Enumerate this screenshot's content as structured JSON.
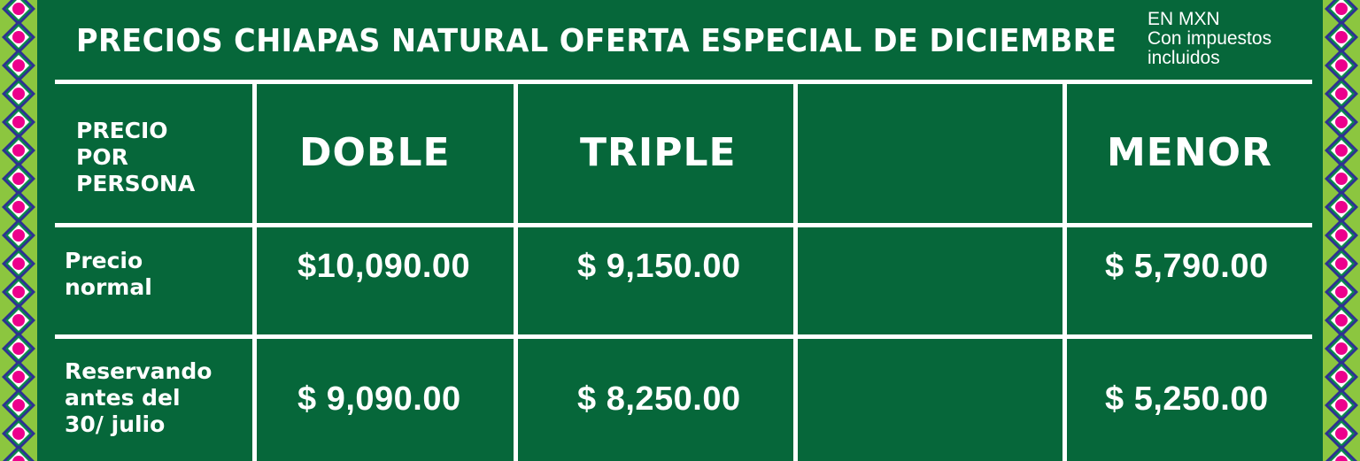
{
  "title": "PRECIOS CHIAPAS NATURAL OFERTA ESPECIAL DE DICIEMBRE",
  "note": [
    "EN MXN",
    "Con impuestos",
    "incluidos"
  ],
  "colors": {
    "background": "#06673a",
    "border_green": "#8cc63f",
    "pattern_navy": "#2e3192",
    "pattern_pink": "#ec008c",
    "lines": "#ffffff"
  },
  "table": {
    "corner_header": [
      "PRECIO",
      "POR",
      "PERSONA"
    ],
    "columns": [
      "DOBLE",
      "TRIPLE",
      "",
      "MENOR"
    ],
    "rows": [
      {
        "label": [
          "Precio",
          "normal"
        ],
        "values": [
          "$10,090.00",
          "$ 9,150.00",
          "",
          "$ 5,790.00"
        ]
      },
      {
        "label": [
          "Reservando",
          "antes del",
          "30/ julio"
        ],
        "values": [
          "$ 9,090.00",
          "$ 8,250.00",
          "",
          "$ 5,250.00"
        ]
      }
    ]
  }
}
